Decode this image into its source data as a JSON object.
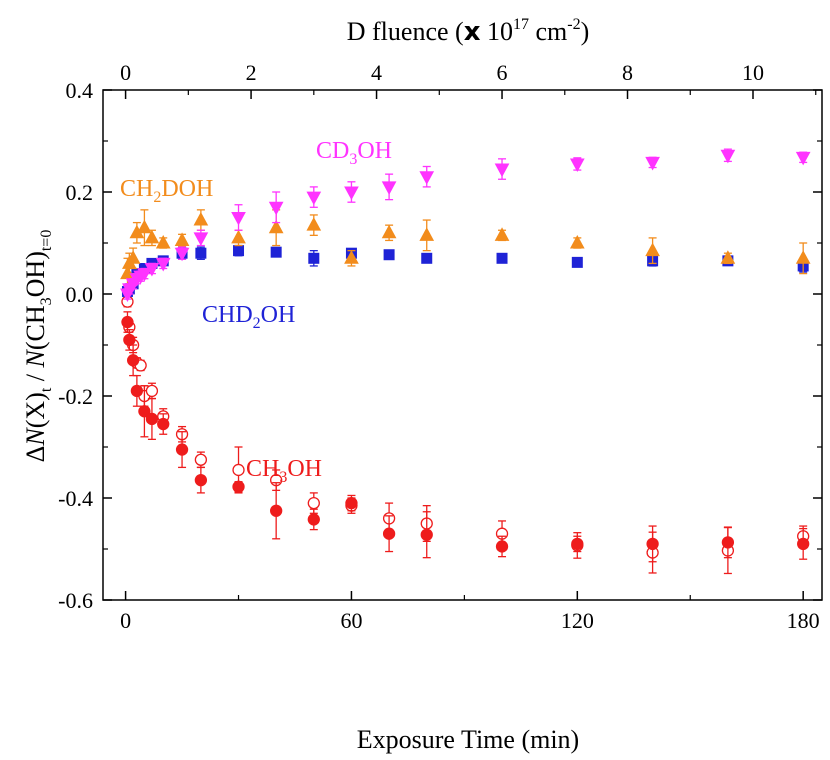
{
  "chart_data": {
    "type": "scatter",
    "xlabel": "Exposure Time (min)",
    "top_xlabel_prefix": "D fluence (",
    "top_xlabel_mult": "x",
    "top_xlabel_unit": " 10",
    "top_xlabel_exp": "17",
    "top_xlabel_cm": " cm",
    "top_xlabel_cm_exp": "-2",
    "top_xlabel_suffix": ")",
    "ylabel_delta": "Δ",
    "ylabel_N1": "N",
    "ylabel_mid": "(X)",
    "ylabel_sub_t": "t",
    "ylabel_sep": " / ",
    "ylabel_N2": "N",
    "ylabel_end": "(CH",
    "ylabel_sub3": "3",
    "ylabel_end2": "OH)",
    "ylabel_sub_t0": "t=0",
    "xlim": [
      -6,
      185
    ],
    "ylim": [
      -0.6,
      0.4
    ],
    "x_ticks": [
      0,
      60,
      120,
      180
    ],
    "x_tick_labels": [
      "0",
      "60",
      "120",
      "180"
    ],
    "y_ticks": [
      -0.6,
      -0.4,
      -0.2,
      0.0,
      0.2,
      0.4
    ],
    "y_tick_labels": [
      "-0.6",
      "-0.4",
      "-0.2",
      "0.0",
      "0.2",
      "0.4"
    ],
    "top_ticks": [
      0,
      2,
      4,
      6,
      8,
      10
    ],
    "top_tick_labels": [
      "0",
      "2",
      "4",
      "6",
      "8",
      "10"
    ],
    "top_axis_min_per_unit": 16.667,
    "series": [
      {
        "name": "CD3OH",
        "label_parts": [
          "CD",
          "3",
          "OH"
        ],
        "color": "#ff33ff",
        "marker": "triangle-down",
        "filled": true,
        "x": [
          0.5,
          1,
          2,
          3,
          4,
          5,
          7,
          10,
          15,
          20,
          30,
          40,
          50,
          60,
          70,
          80,
          100,
          120,
          140,
          160,
          180
        ],
        "y": [
          0.0,
          0.01,
          0.02,
          0.03,
          0.035,
          0.04,
          0.05,
          0.06,
          0.08,
          0.11,
          0.15,
          0.17,
          0.19,
          0.2,
          0.21,
          0.23,
          0.245,
          0.255,
          0.258,
          0.272,
          0.268
        ],
        "err": [
          0.01,
          0.01,
          0.01,
          0.01,
          0.01,
          0.01,
          0.01,
          0.01,
          0.012,
          0.015,
          0.025,
          0.03,
          0.02,
          0.02,
          0.025,
          0.02,
          0.02,
          0.012,
          0.01,
          0.012,
          0.01
        ]
      },
      {
        "name": "CH2DOH",
        "label_parts": [
          "CH",
          "2",
          "DOH"
        ],
        "color": "#f28c1c",
        "marker": "triangle-up",
        "filled": true,
        "x": [
          0.5,
          1,
          2,
          3,
          5,
          7,
          10,
          15,
          20,
          30,
          40,
          50,
          60,
          70,
          80,
          100,
          120,
          140,
          160,
          180
        ],
        "y": [
          0.04,
          0.06,
          0.07,
          0.12,
          0.13,
          0.11,
          0.1,
          0.105,
          0.145,
          0.11,
          0.13,
          0.135,
          0.07,
          0.12,
          0.115,
          0.115,
          0.1,
          0.085,
          0.07,
          0.07
        ],
        "err": [
          0.03,
          0.02,
          0.02,
          0.02,
          0.035,
          0.015,
          0.01,
          0.012,
          0.02,
          0.015,
          0.035,
          0.02,
          0.015,
          0.015,
          0.03,
          0.01,
          0.01,
          0.025,
          0.01,
          0.03
        ]
      },
      {
        "name": "CHD2OH",
        "label_parts": [
          "CHD",
          "2",
          "OH"
        ],
        "color": "#1f23d6",
        "marker": "square",
        "filled": true,
        "x": [
          0.5,
          1,
          2,
          3,
          5,
          7,
          10,
          15,
          20,
          30,
          40,
          50,
          60,
          70,
          80,
          100,
          120,
          140,
          160,
          180
        ],
        "y": [
          0.005,
          0.01,
          0.02,
          0.04,
          0.05,
          0.06,
          0.065,
          0.08,
          0.08,
          0.085,
          0.082,
          0.07,
          0.08,
          0.077,
          0.07,
          0.07,
          0.062,
          0.065,
          0.065,
          0.055
        ],
        "err": [
          0.01,
          0.01,
          0.01,
          0.008,
          0.008,
          0.008,
          0.008,
          0.012,
          0.012,
          0.01,
          0.008,
          0.015,
          0.008,
          0.008,
          0.008,
          0.006,
          0.006,
          0.01,
          0.008,
          0.012
        ]
      },
      {
        "name": "CH3OH",
        "label_parts": [
          "CH",
          "3",
          "OH"
        ],
        "color": "#ee1c1c",
        "marker": "circle",
        "filled": true,
        "x": [
          0.5,
          1,
          2,
          3,
          5,
          7,
          10,
          15,
          20,
          30,
          40,
          50,
          60,
          70,
          80,
          100,
          120,
          140,
          160,
          180
        ],
        "y": [
          -0.055,
          -0.09,
          -0.13,
          -0.19,
          -0.23,
          -0.245,
          -0.255,
          -0.305,
          -0.365,
          -0.378,
          -0.425,
          -0.442,
          -0.41,
          -0.47,
          -0.472,
          -0.495,
          -0.49,
          -0.49,
          -0.487,
          -0.49
        ],
        "err": [
          0.02,
          0.02,
          0.03,
          0.03,
          0.05,
          0.04,
          0.02,
          0.035,
          0.025,
          0.01,
          0.055,
          0.02,
          0.015,
          0.035,
          0.045,
          0.02,
          0.015,
          0.035,
          0.03,
          0.03
        ]
      },
      {
        "name": "CH3OH (open)",
        "color": "#ee1c1c",
        "marker": "circle",
        "filled": false,
        "x": [
          0.5,
          1,
          2,
          3,
          4,
          5,
          7,
          10,
          15,
          20,
          30,
          40,
          50,
          60,
          70,
          80,
          100,
          120,
          140,
          160,
          180
        ],
        "y": [
          -0.015,
          -0.065,
          -0.1,
          -0.135,
          -0.14,
          -0.2,
          -0.19,
          -0.24,
          -0.275,
          -0.325,
          -0.345,
          -0.365,
          -0.41,
          -0.415,
          -0.44,
          -0.45,
          -0.47,
          -0.493,
          -0.507,
          -0.503,
          -0.475
        ],
        "err": [
          0.01,
          0.01,
          0.015,
          0.01,
          0.01,
          0.02,
          0.015,
          0.015,
          0.015,
          0.015,
          0.045,
          0.02,
          0.02,
          0.015,
          0.03,
          0.035,
          0.025,
          0.025,
          0.04,
          0.045,
          0.02
        ]
      }
    ]
  }
}
